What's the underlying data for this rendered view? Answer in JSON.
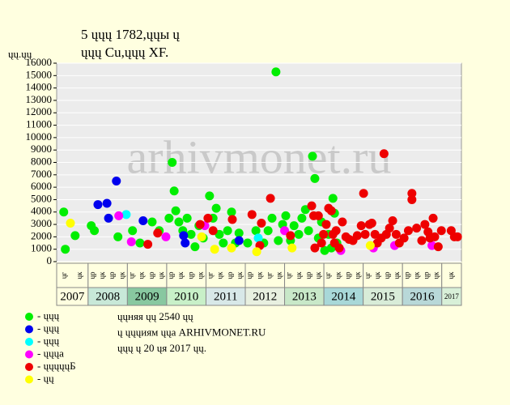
{
  "chart_data": {
    "type": "scatter",
    "title": "5 ųųų 1782,ųųы ų",
    "subtitle": "ųųų Cu,ųųų XF.",
    "y_label": "ųų.ųų",
    "watermark": "arhivmonet.ru",
    "xlim": [
      2007.2,
      2017.5
    ],
    "xticks": [
      {
        "value": 2007,
        "label": "2007"
      },
      {
        "value": 2008,
        "label": "2008"
      },
      {
        "value": 2009,
        "label": "2009"
      },
      {
        "value": 2010,
        "label": "2010"
      },
      {
        "value": 2011,
        "label": "2011"
      },
      {
        "value": 2012,
        "label": "2012"
      },
      {
        "value": 2013,
        "label": "2013"
      },
      {
        "value": 2014,
        "label": "2014"
      },
      {
        "value": 2015,
        "label": "2015"
      },
      {
        "value": 2016,
        "label": "2016"
      },
      {
        "value": 2017,
        "label": "2017"
      }
    ],
    "sub_labels": [
      [
        "ųг",
        "ųк"
      ],
      [
        "ųр",
        "ųк",
        "ųр",
        "ųк"
      ],
      [
        "ųг",
        "ųк",
        "ųр",
        "ųк"
      ],
      [
        "ųр",
        "ųк",
        "ųр",
        "ųк"
      ],
      [
        "ųг",
        "ųк",
        "ųр",
        "ųк"
      ],
      [
        "ųр",
        "ųк",
        "ųг",
        "ųк"
      ],
      [
        "ųг",
        "ųк",
        "ųр",
        "ųк"
      ],
      [
        "ųг",
        "ųк",
        "ųр",
        "ųк"
      ],
      [
        "ųг",
        "ųк",
        "ųр",
        "ųк"
      ],
      [
        "ųр",
        "ųк",
        "ųр",
        "ųк"
      ],
      [
        "ųк"
      ]
    ],
    "ylim": [
      0,
      16000
    ],
    "yticks": [
      0,
      1000,
      2000,
      3000,
      4000,
      5000,
      6000,
      7000,
      8000,
      9000,
      10000,
      11000,
      12000,
      13000,
      14000,
      15000,
      16000
    ],
    "grid": true,
    "series": [
      {
        "name": "- ųųų",
        "color": "#00ee00",
        "x": [
          2007.38,
          2007.42,
          2007.67,
          2008.08,
          2008.16,
          2008.76,
          2009.13,
          2009.32,
          2009.63,
          2009.81,
          2010.06,
          2010.14,
          2010.19,
          2010.23,
          2010.31,
          2010.41,
          2010.52,
          2010.62,
          2010.72,
          2010.82,
          2010.93,
          2011.09,
          2011.18,
          2011.26,
          2011.34,
          2011.44,
          2011.55,
          2011.65,
          2011.75,
          2011.84,
          2012.06,
          2012.27,
          2012.47,
          2012.58,
          2012.68,
          2012.78,
          2012.84,
          2012.95,
          2013.03,
          2013.15,
          2013.24,
          2013.36,
          2013.44,
          2013.53,
          2013.61,
          2013.71,
          2013.77,
          2013.86,
          2013.94,
          2014.02,
          2014.12,
          2014.23,
          2014.27,
          2014.33,
          2014.19
        ],
        "values": [
          4000,
          1000,
          2100,
          2900,
          2500,
          2000,
          2500,
          1500,
          3200,
          2500,
          3500,
          8000,
          5700,
          4100,
          3200,
          2500,
          3500,
          2200,
          1200,
          2900,
          1900,
          5300,
          3500,
          4300,
          2200,
          1500,
          2500,
          4000,
          1500,
          2300,
          1500,
          2500,
          1500,
          2500,
          3500,
          15300,
          1700,
          3000,
          3700,
          1700,
          2900,
          2200,
          3500,
          4200,
          2500,
          8500,
          6700,
          1900,
          3200,
          900,
          2200,
          5100,
          3900,
          1500,
          1100
        ]
      },
      {
        "name": "- ųųų",
        "color": "#0000ee",
        "x": [
          2008.25,
          2008.48,
          2008.52,
          2008.72,
          2009.4,
          2010.43,
          2010.47,
          2011.84
        ],
        "values": [
          4600,
          4700,
          3500,
          6500,
          3300,
          2100,
          1500,
          1700
        ]
      },
      {
        "name": "- ųųų",
        "color": "#00ffff",
        "x": [
          2008.97,
          2012.33
        ],
        "values": [
          3800,
          1900
        ]
      },
      {
        "name": "- ųųųа",
        "color": "#ff00ff",
        "x": [
          2008.78,
          2009.1,
          2009.98,
          2010.97,
          2013.0,
          2014.43,
          2015.26,
          2015.8,
          2016.75
        ],
        "values": [
          3700,
          1600,
          2000,
          2900,
          2500,
          900,
          1100,
          1300,
          1300
        ]
      },
      {
        "name": "- ųųųųųБ",
        "color": "#ee0000",
        "x": [
          2009.52,
          2009.77,
          2010.85,
          2011.05,
          2011.18,
          2011.67,
          2012.17,
          2012.41,
          2012.37,
          2012.64,
          2013.15,
          2013.69,
          2013.74,
          2013.77,
          2013.86,
          2013.94,
          2013.99,
          2014.06,
          2014.12,
          2014.19,
          2014.23,
          2014.27,
          2014.31,
          2014.39,
          2014.47,
          2014.56,
          2014.64,
          2014.74,
          2014.85,
          2014.95,
          2015.01,
          2015.05,
          2015.16,
          2015.22,
          2015.3,
          2015.36,
          2015.46,
          2015.53,
          2015.59,
          2015.67,
          2015.75,
          2015.84,
          2015.92,
          2016.04,
          2016.15,
          2016.24,
          2016.24,
          2016.36,
          2016.49,
          2016.57,
          2016.65,
          2016.7,
          2016.78,
          2016.82,
          2016.91,
          2016.99,
          2017.24,
          2017.32,
          2017.4
        ],
        "values": [
          1400,
          2300,
          3000,
          3500,
          2500,
          3400,
          3800,
          3100,
          1300,
          5100,
          2100,
          4500,
          3700,
          1100,
          3700,
          1500,
          2200,
          3000,
          4300,
          4100,
          2200,
          1500,
          2500,
          1100,
          3200,
          2000,
          1800,
          1700,
          2100,
          2900,
          5500,
          2200,
          3000,
          3100,
          2200,
          1500,
          1900,
          8700,
          2200,
          2700,
          3300,
          2200,
          1500,
          1900,
          2500,
          5500,
          5000,
          2700,
          1700,
          3000,
          2400,
          1900,
          3500,
          2000,
          1200,
          2500,
          2500,
          2000,
          2000
        ]
      },
      {
        "name": "- ųų",
        "color": "#ffff00",
        "x": [
          2007.55,
          2010.89,
          2011.22,
          2012.29,
          2013.19,
          2015.18,
          2011.65
        ],
        "values": [
          3100,
          2000,
          1000,
          800,
          1100,
          1300,
          1100
        ]
      }
    ],
    "notes": [
      "ųųняя ųų 2540 ųų",
      "ų ųųųиям ųųа ARHIVMONET.RU",
      "ųųų ų 20 ųя 2017 ųų."
    ]
  }
}
